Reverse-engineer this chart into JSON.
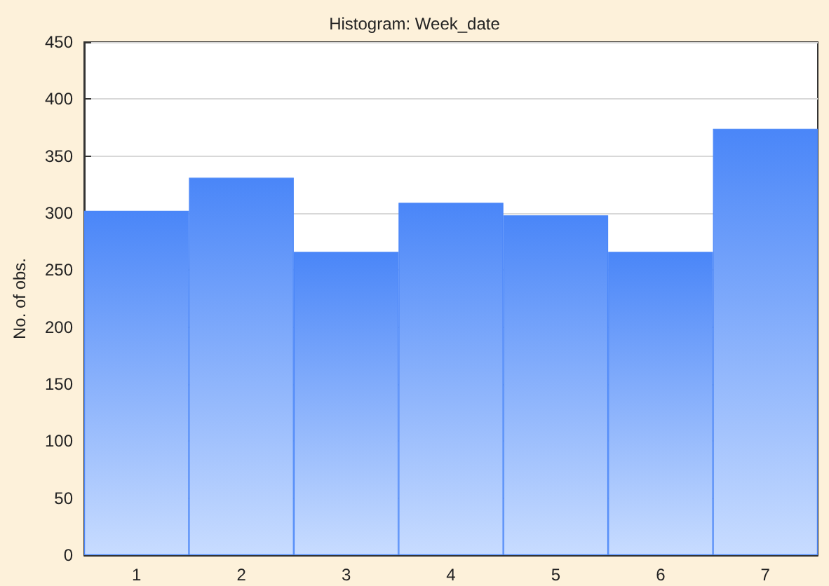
{
  "chart_data": {
    "type": "bar",
    "title": "Histogram: Week_date",
    "ylabel": "No. of obs.",
    "categories": [
      "1",
      "2",
      "3",
      "4",
      "5",
      "6",
      "7"
    ],
    "values": [
      302,
      331,
      266,
      309,
      298,
      266,
      374
    ],
    "color": "#4a86f8",
    "ylim": [
      0,
      450
    ],
    "yticks": [
      0,
      50,
      100,
      150,
      200,
      250,
      300,
      350,
      400,
      450
    ],
    "grid": "y"
  }
}
